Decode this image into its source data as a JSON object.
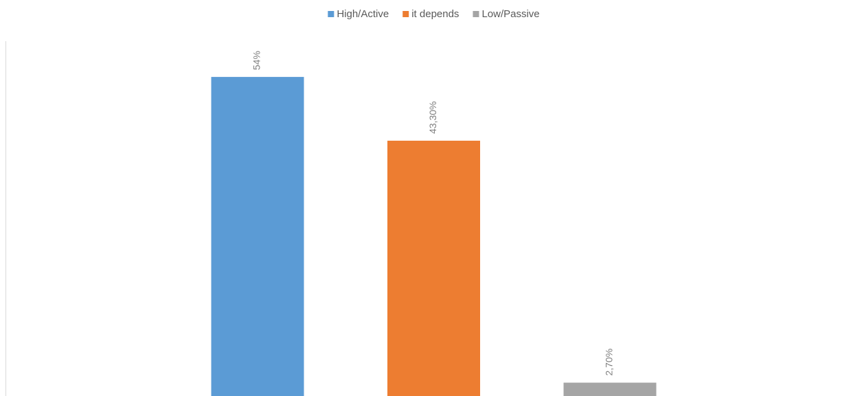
{
  "chart_data": {
    "type": "bar",
    "categories": [
      null
    ],
    "series": [
      {
        "name": "High/Active",
        "color": "#5b9bd5",
        "values": [
          54
        ],
        "value_labels": [
          "54%"
        ]
      },
      {
        "name": "it depends",
        "color": "#ed7d31",
        "values": [
          43.3
        ],
        "value_labels": [
          "43,30%"
        ]
      },
      {
        "name": "Low/Passive",
        "color": "#a5a5a5",
        "values": [
          2.7
        ],
        "value_labels": [
          "2,70%"
        ]
      }
    ],
    "ylim": [
      0,
      60
    ],
    "legend": "top"
  }
}
